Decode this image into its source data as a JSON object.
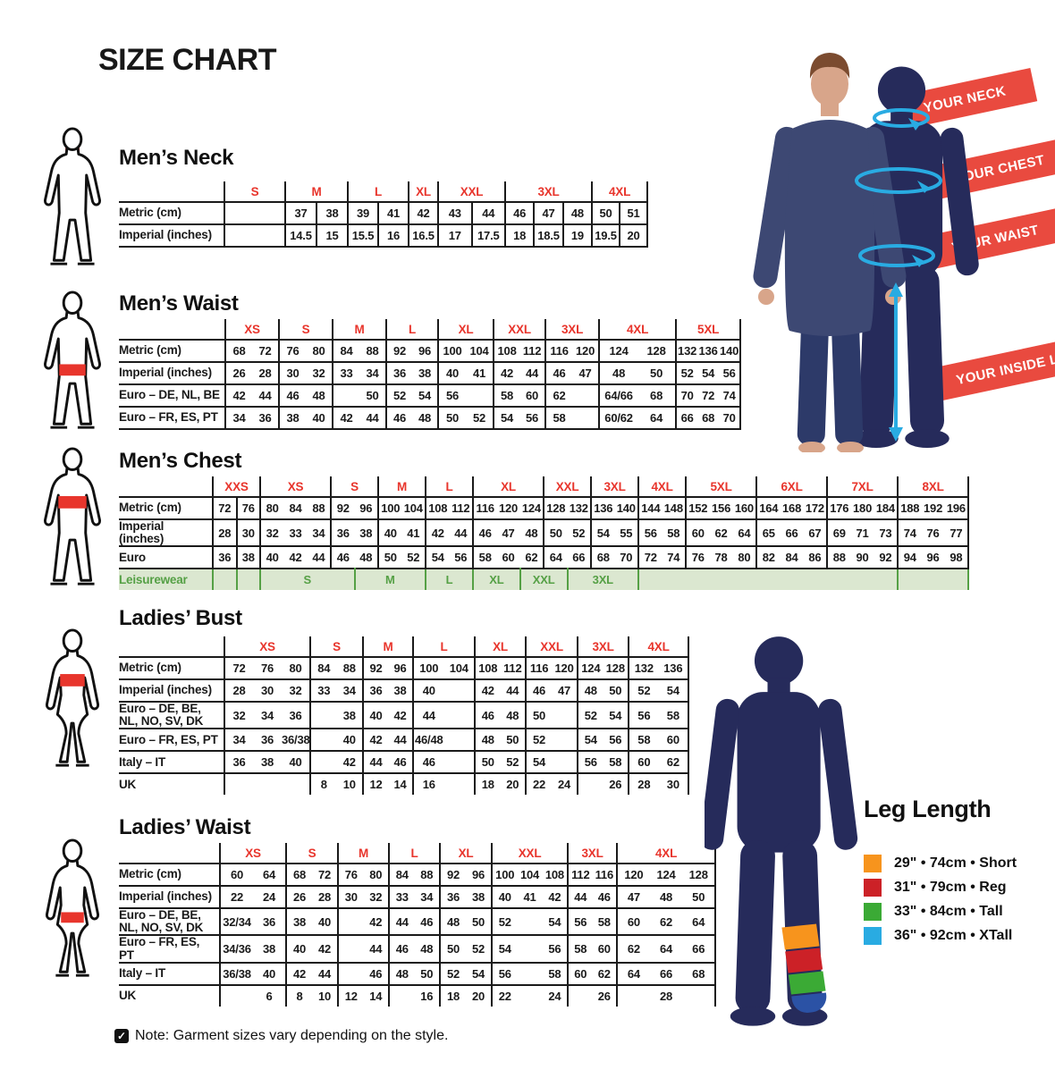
{
  "title": "SIZE CHART",
  "note": "Note: Garment sizes vary depending on the style.",
  "banners": [
    "YOUR NECK",
    "YOUR CHEST",
    "YOUR WAIST",
    "YOUR INSIDE LEG"
  ],
  "leg_length": {
    "title": "Leg Length",
    "items": [
      {
        "color": "#f7941d",
        "label": "29\" • 74cm • Short"
      },
      {
        "color": "#cc2127",
        "label": "31\" • 79cm • Reg"
      },
      {
        "color": "#3baa35",
        "label": "33\" • 84cm • Tall"
      },
      {
        "color": "#29abe2",
        "label": "36\" • 92cm • XTall"
      }
    ]
  },
  "colors": {
    "size_label_red": "#e8352c",
    "banner_red": "#e94a3f",
    "silhouette_navy": "#262b5b",
    "arrow_blue": "#29abe2",
    "leisure_text_green": "#55a045",
    "leisure_bg_green": "#dbe7d0",
    "figure_highlight_red": "#e8352c"
  },
  "tables": [
    {
      "id": "mens-neck",
      "title": "Men’s Neck",
      "figure": "male-neck",
      "sub_dividers": true,
      "bottom_border": true,
      "sizes": [
        {
          "label": "S",
          "span": 2
        },
        {
          "label": "M",
          "span": 2
        },
        {
          "label": "L",
          "span": 2
        },
        {
          "label": "XL",
          "span": 1
        },
        {
          "label": "XXL",
          "span": 2
        },
        {
          "label": "3XL",
          "span": 3
        },
        {
          "label": "4XL",
          "span": 2
        }
      ],
      "rows": [
        {
          "label": "Metric (cm)",
          "cells": [
            [
              "",
              2
            ],
            "37",
            "38",
            "39",
            "41",
            "42",
            "43",
            "44",
            "46",
            "47",
            "48",
            "50",
            "51"
          ]
        },
        {
          "label": "Imperial (inches)",
          "cells": [
            [
              "",
              2
            ],
            "14.5",
            "15",
            "15.5",
            "16",
            "16.5",
            "17",
            "17.5",
            "18",
            "18.5",
            "19",
            "19.5",
            "20"
          ]
        }
      ]
    },
    {
      "id": "mens-waist",
      "title": "Men’s Waist",
      "figure": "male-waist",
      "bottom_border": true,
      "sizes": [
        {
          "label": "XS",
          "span": 2
        },
        {
          "label": "S",
          "span": 2
        },
        {
          "label": "M",
          "span": 2
        },
        {
          "label": "L",
          "span": 2
        },
        {
          "label": "XL",
          "span": 2
        },
        {
          "label": "XXL",
          "span": 2
        },
        {
          "label": "3XL",
          "span": 2
        },
        {
          "label": "4XL",
          "span": 2
        },
        {
          "label": "5XL",
          "span": 3
        }
      ],
      "rows": [
        {
          "label": "Metric (cm)",
          "cells": [
            "68",
            "72",
            "76",
            "80",
            "84",
            "88",
            "92",
            "96",
            "100",
            "104",
            "108",
            "112",
            "116",
            "120",
            "124",
            "128",
            "132",
            "136",
            "140"
          ]
        },
        {
          "label": "Imperial (inches)",
          "cells": [
            "26",
            "28",
            "30",
            "32",
            "33",
            "34",
            "36",
            "38",
            "40",
            "41",
            "42",
            "44",
            "46",
            "47",
            "48",
            "50",
            "52",
            "54",
            "56"
          ]
        },
        {
          "label": "Euro – DE, NL, BE",
          "cells": [
            "42",
            "44",
            "46",
            "48",
            "",
            "50",
            "52",
            "54",
            "56",
            "",
            "58",
            "60",
            "62",
            "",
            "64/66",
            "68",
            "70",
            "72",
            "74"
          ]
        },
        {
          "label": "Euro – FR, ES, PT",
          "cells": [
            "34",
            "36",
            "38",
            "40",
            "42",
            "44",
            "46",
            "48",
            "50",
            "52",
            "54",
            "56",
            "58",
            "",
            "60/62",
            "64",
            "66",
            "68",
            "70"
          ]
        }
      ]
    },
    {
      "id": "mens-chest",
      "title": "Men’s Chest",
      "figure": "male-chest",
      "extra_boundaries": [
        1
      ],
      "bottom_border": false,
      "sizes": [
        {
          "label": "XXS",
          "span": 2
        },
        {
          "label": "XS",
          "span": 3
        },
        {
          "label": "S",
          "span": 2
        },
        {
          "label": "M",
          "span": 2
        },
        {
          "label": "L",
          "span": 2
        },
        {
          "label": "XL",
          "span": 3
        },
        {
          "label": "XXL",
          "span": 2
        },
        {
          "label": "3XL",
          "span": 2
        },
        {
          "label": "4XL",
          "span": 2
        },
        {
          "label": "5XL",
          "span": 3
        },
        {
          "label": "6XL",
          "span": 3
        },
        {
          "label": "7XL",
          "span": 3
        },
        {
          "label": "8XL",
          "span": 3
        }
      ],
      "rows": [
        {
          "label": "Metric (cm)",
          "cells": [
            "72",
            "76",
            "80",
            "84",
            "88",
            "92",
            "96",
            "100",
            "104",
            "108",
            "112",
            "116",
            "120",
            "124",
            "128",
            "132",
            "136",
            "140",
            "144",
            "148",
            "152",
            "156",
            "160",
            "164",
            "168",
            "172",
            "176",
            "180",
            "184",
            "188",
            "192",
            "196"
          ]
        },
        {
          "label": "Imperial (inches)",
          "cells": [
            "28",
            "30",
            "32",
            "33",
            "34",
            "36",
            "38",
            "40",
            "41",
            "42",
            "44",
            "46",
            "47",
            "48",
            "50",
            "52",
            "54",
            "55",
            "56",
            "58",
            "60",
            "62",
            "64",
            "65",
            "66",
            "67",
            "69",
            "71",
            "73",
            "74",
            "76",
            "77"
          ]
        },
        {
          "label": "Euro",
          "cells": [
            "36",
            "38",
            "40",
            "42",
            "44",
            "46",
            "48",
            "50",
            "52",
            "54",
            "56",
            "58",
            "60",
            "62",
            "64",
            "66",
            "68",
            "70",
            "72",
            "74",
            "76",
            "78",
            "80",
            "82",
            "84",
            "86",
            "88",
            "90",
            "92",
            "94",
            "96",
            "98"
          ]
        },
        {
          "label": "Leisurewear",
          "cls": "leisure",
          "cells": [
            [
              "",
              1
            ],
            [
              "",
              1
            ],
            [
              "S",
              4
            ],
            [
              "M",
              3
            ],
            [
              "L",
              2
            ],
            [
              "XL",
              2
            ],
            [
              "XXL",
              2
            ],
            [
              "3XL",
              3
            ],
            [
              "",
              11
            ],
            [
              "",
              3
            ]
          ]
        }
      ]
    },
    {
      "id": "ladies-bust",
      "title": "Ladies’ Bust",
      "figure": "female-bust",
      "bottom_border": false,
      "sizes": [
        {
          "label": "XS",
          "span": 3
        },
        {
          "label": "S",
          "span": 2
        },
        {
          "label": "M",
          "span": 2
        },
        {
          "label": "L",
          "span": 2
        },
        {
          "label": "XL",
          "span": 2
        },
        {
          "label": "XXL",
          "span": 2
        },
        {
          "label": "3XL",
          "span": 2
        },
        {
          "label": "4XL",
          "span": 2
        }
      ],
      "rows": [
        {
          "label": "Metric (cm)",
          "cells": [
            "72",
            "76",
            "80",
            "84",
            "88",
            "92",
            "96",
            "100",
            "104",
            "108",
            "112",
            "116",
            "120",
            "124",
            "128",
            "132",
            "136"
          ]
        },
        {
          "label": "Imperial (inches)",
          "cells": [
            "28",
            "30",
            "32",
            "33",
            "34",
            "36",
            "38",
            "40",
            "",
            "42",
            "44",
            "46",
            "47",
            "48",
            "50",
            "52",
            "54"
          ]
        },
        {
          "label": "Euro –  DE, BE, NL, NO, SV, DK",
          "cells": [
            "32",
            "34",
            "36",
            "",
            "38",
            "40",
            "42",
            "44",
            "",
            "46",
            "48",
            "50",
            "",
            "52",
            "54",
            "56",
            "58"
          ]
        },
        {
          "label": "Euro – FR, ES, PT",
          "cells": [
            "34",
            "36",
            "36/38",
            "",
            "40",
            "42",
            "44",
            "46/48",
            "",
            "48",
            "50",
            "52",
            "",
            "54",
            "56",
            "58",
            "60"
          ]
        },
        {
          "label": "Italy – IT",
          "cells": [
            "36",
            "38",
            "40",
            "",
            "42",
            "44",
            "46",
            "46",
            "",
            "50",
            "52",
            "54",
            "",
            "56",
            "58",
            "60",
            "62"
          ]
        },
        {
          "label": "UK",
          "cells": [
            "",
            "",
            "",
            "8",
            "10",
            "12",
            "14",
            "16",
            "",
            "18",
            "20",
            "22",
            "24",
            "",
            "26",
            "28",
            "30"
          ]
        }
      ]
    },
    {
      "id": "ladies-waist",
      "title": "Ladies’ Waist",
      "figure": "female-waist",
      "bottom_border": false,
      "sizes": [
        {
          "label": "XS",
          "span": 2
        },
        {
          "label": "S",
          "span": 2
        },
        {
          "label": "M",
          "span": 2
        },
        {
          "label": "L",
          "span": 2
        },
        {
          "label": "XL",
          "span": 2
        },
        {
          "label": "XXL",
          "span": 3
        },
        {
          "label": "3XL",
          "span": 2
        },
        {
          "label": "4XL",
          "span": 3
        }
      ],
      "rows": [
        {
          "label": "Metric (cm)",
          "cells": [
            "60",
            "64",
            "68",
            "72",
            "76",
            "80",
            "84",
            "88",
            "92",
            "96",
            "100",
            "104",
            "108",
            "112",
            "116",
            "120",
            "124",
            "128"
          ]
        },
        {
          "label": "Imperial (inches)",
          "cells": [
            "22",
            "24",
            "26",
            "28",
            "30",
            "32",
            "33",
            "34",
            "36",
            "38",
            "40",
            "41",
            "42",
            "44",
            "46",
            "47",
            "48",
            "50"
          ]
        },
        {
          "label": "Euro – DE, BE, NL, NO, SV, DK",
          "cells": [
            "32/34",
            "36",
            "38",
            "40",
            "",
            "42",
            "44",
            "46",
            "48",
            "50",
            "52",
            "",
            "54",
            "56",
            "58",
            "60",
            "62",
            "64"
          ]
        },
        {
          "label": "Euro – FR, ES, PT",
          "cells": [
            "34/36",
            "38",
            "40",
            "42",
            "",
            "44",
            "46",
            "48",
            "50",
            "52",
            "54",
            "",
            "56",
            "58",
            "60",
            "62",
            "64",
            "66"
          ]
        },
        {
          "label": "Italy – IT",
          "cells": [
            "36/38",
            "40",
            "42",
            "44",
            "",
            "46",
            "48",
            "50",
            "52",
            "54",
            "56",
            "",
            "58",
            "60",
            "62",
            "64",
            "66",
            "68"
          ]
        },
        {
          "label": "UK",
          "cells": [
            "",
            "6",
            "8",
            "10",
            "12",
            "14",
            "",
            "16",
            "18",
            "20",
            "22",
            "",
            "24",
            "",
            "26",
            "",
            "28",
            ""
          ]
        }
      ]
    }
  ]
}
